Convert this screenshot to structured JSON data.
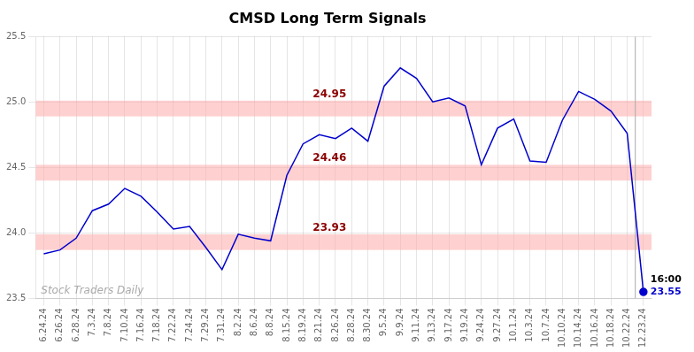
{
  "chart_data": {
    "type": "line",
    "title": "CMSD Long Term Signals",
    "categories": [
      "6.24.24",
      "6.26.24",
      "6.28.24",
      "7.3.24",
      "7.8.24",
      "7.10.24",
      "7.16.24",
      "7.18.24",
      "7.22.24",
      "7.24.24",
      "7.29.24",
      "7.31.24",
      "8.2.24",
      "8.6.24",
      "8.8.24",
      "8.15.24",
      "8.19.24",
      "8.21.24",
      "8.26.24",
      "8.28.24",
      "8.30.24",
      "9.5.24",
      "9.9.24",
      "9.11.24",
      "9.13.24",
      "9.17.24",
      "9.19.24",
      "9.24.24",
      "9.27.24",
      "10.1.24",
      "10.3.24",
      "10.7.24",
      "10.10.24",
      "10.14.24",
      "10.16.24",
      "10.18.24",
      "10.22.24",
      "12.23.24"
    ],
    "values": [
      23.84,
      23.87,
      23.96,
      24.17,
      24.22,
      24.34,
      24.28,
      24.16,
      24.03,
      24.05,
      23.89,
      23.72,
      23.99,
      23.96,
      23.94,
      24.44,
      24.68,
      24.75,
      24.72,
      24.8,
      24.7,
      25.12,
      25.26,
      25.18,
      25.0,
      25.03,
      24.97,
      24.52,
      24.8,
      24.87,
      24.55,
      24.54,
      24.86,
      25.08,
      25.02,
      24.93,
      24.76,
      23.55
    ],
    "color": "#0000cc",
    "ylim": [
      23.5,
      25.5
    ],
    "yticks": [
      23.5,
      {
        "value": 24.0,
        "label": "24.0"
      },
      24.5,
      {
        "value": 25.0,
        "label": "25.0"
      },
      25.5
    ],
    "grid": true,
    "bands": [
      {
        "y": 24.95,
        "label": "24.95",
        "color": "#8b0000"
      },
      {
        "y": 24.46,
        "label": "24.46",
        "color": "#8b0000"
      },
      {
        "y": 23.93,
        "label": "23.93",
        "color": "#8b0000"
      }
    ],
    "band_half_height": 0.06,
    "band_color": "#ffaaaa",
    "last_point_labels": [
      "16:00",
      "23.55"
    ],
    "watermark": "Stock Traders Daily"
  }
}
